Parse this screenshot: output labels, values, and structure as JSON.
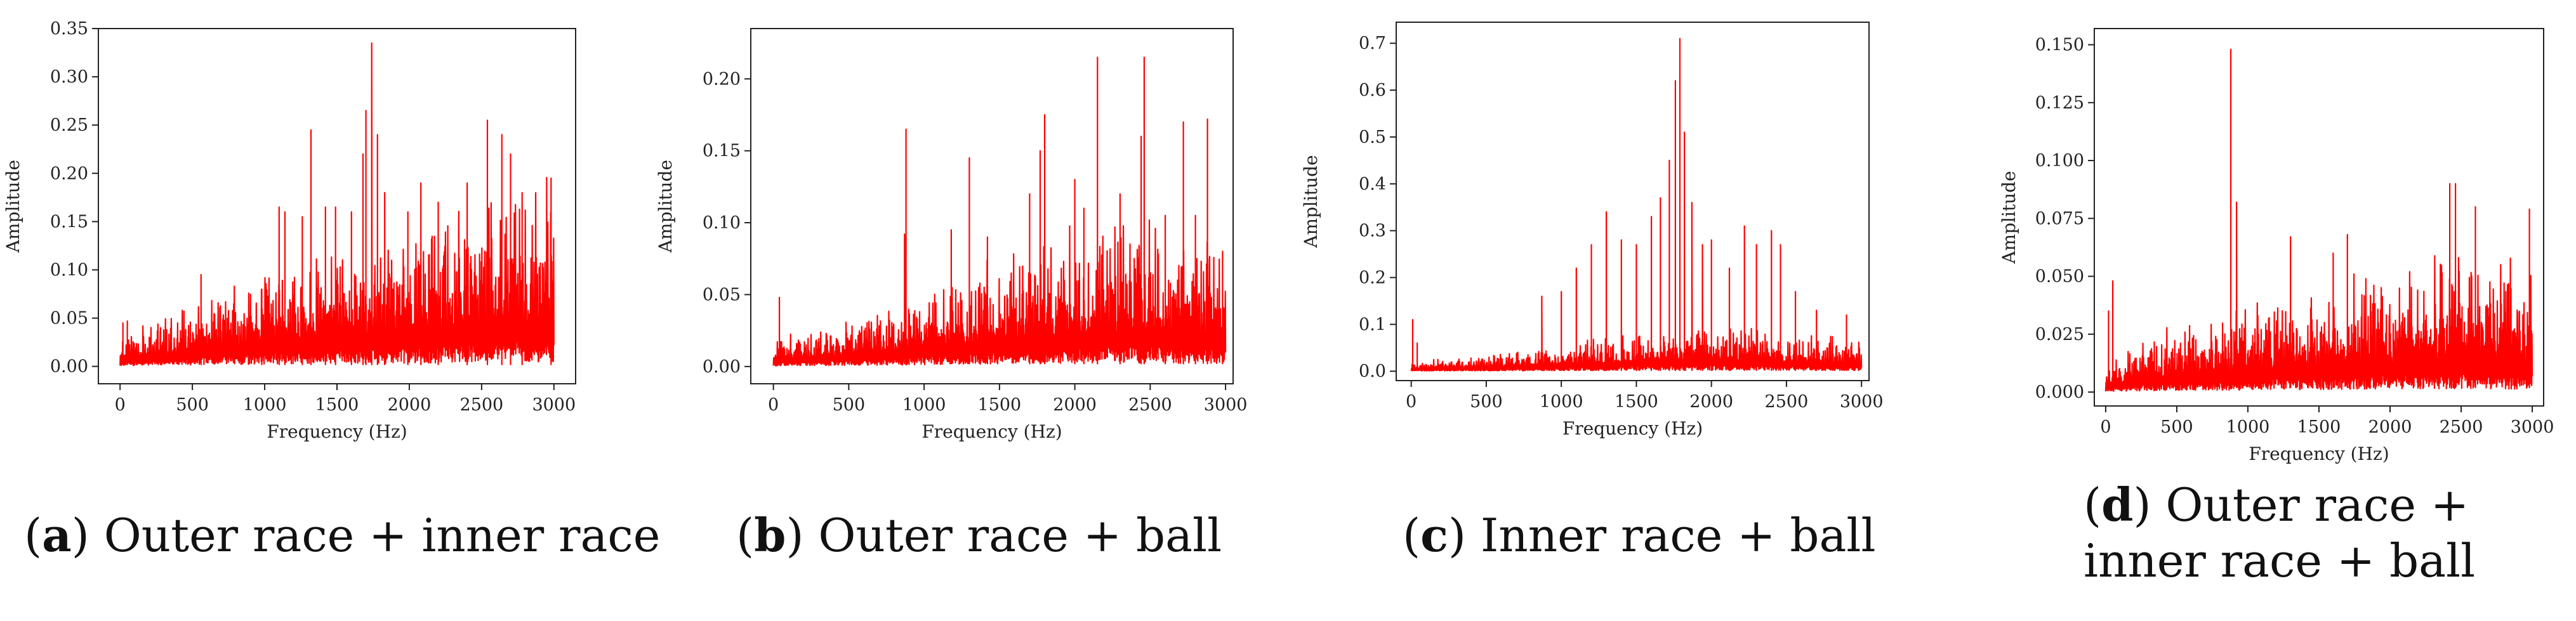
{
  "chart_data": [
    {
      "type": "line",
      "panel": "a",
      "title": "",
      "xlabel": "Frequency (Hz)",
      "ylabel": "Amplitude",
      "xlim": [
        -150,
        3150
      ],
      "ylim": [
        -0.018,
        0.35
      ],
      "x_ticks": [
        0,
        500,
        1000,
        1500,
        2000,
        2500,
        3000
      ],
      "x_tick_labels": [
        "0",
        "500",
        "1000",
        "1500",
        "2000",
        "2500",
        "3000"
      ],
      "y_ticks": [
        0,
        0.05,
        0.1,
        0.15,
        0.2,
        0.25,
        0.3,
        0.35
      ],
      "y_tick_labels": [
        "0.00",
        "0.05",
        "0.10",
        "0.15",
        "0.20",
        "0.25",
        "0.30",
        "0.35"
      ],
      "color": "#ff0000",
      "noise_floor": [
        [
          0,
          0.015
        ],
        [
          500,
          0.03
        ],
        [
          1000,
          0.05
        ],
        [
          1500,
          0.06
        ],
        [
          2000,
          0.065
        ],
        [
          2500,
          0.085
        ],
        [
          3000,
          0.09
        ]
      ],
      "peaks": [
        [
          20,
          0.045
        ],
        [
          50,
          0.047
        ],
        [
          280,
          0.04
        ],
        [
          560,
          0.095
        ],
        [
          980,
          0.08
        ],
        [
          1100,
          0.165
        ],
        [
          1140,
          0.16
        ],
        [
          1260,
          0.155
        ],
        [
          1320,
          0.245
        ],
        [
          1420,
          0.165
        ],
        [
          1490,
          0.165
        ],
        [
          1600,
          0.16
        ],
        [
          1680,
          0.22
        ],
        [
          1700,
          0.265
        ],
        [
          1740,
          0.335
        ],
        [
          1780,
          0.24
        ],
        [
          1830,
          0.18
        ],
        [
          1990,
          0.16
        ],
        [
          2080,
          0.19
        ],
        [
          2200,
          0.17
        ],
        [
          2400,
          0.19
        ],
        [
          2540,
          0.255
        ],
        [
          2640,
          0.24
        ],
        [
          2700,
          0.22
        ],
        [
          2780,
          0.18
        ],
        [
          2980,
          0.195
        ]
      ]
    },
    {
      "type": "line",
      "panel": "b",
      "title": "",
      "xlabel": "Frequency (Hz)",
      "ylabel": "Amplitude",
      "xlim": [
        -150,
        3050
      ],
      "ylim": [
        -0.012,
        0.235
      ],
      "x_ticks": [
        0,
        500,
        1000,
        1500,
        2000,
        2500,
        3000
      ],
      "x_tick_labels": [
        "0",
        "500",
        "1000",
        "1500",
        "2000",
        "2500",
        "3000"
      ],
      "y_ticks": [
        0,
        0.05,
        0.1,
        0.15,
        0.2
      ],
      "y_tick_labels": [
        "0.00",
        "0.05",
        "0.10",
        "0.15",
        "0.20"
      ],
      "color": "#ff0000",
      "noise_floor": [
        [
          0,
          0.01
        ],
        [
          500,
          0.015
        ],
        [
          1000,
          0.025
        ],
        [
          1500,
          0.035
        ],
        [
          2000,
          0.045
        ],
        [
          2500,
          0.05
        ],
        [
          3000,
          0.04
        ]
      ],
      "peaks": [
        [
          40,
          0.048
        ],
        [
          870,
          0.092
        ],
        [
          880,
          0.165
        ],
        [
          1180,
          0.095
        ],
        [
          1300,
          0.145
        ],
        [
          1420,
          0.09
        ],
        [
          1700,
          0.12
        ],
        [
          1770,
          0.15
        ],
        [
          1800,
          0.175
        ],
        [
          2000,
          0.13
        ],
        [
          2060,
          0.11
        ],
        [
          2150,
          0.215
        ],
        [
          2300,
          0.12
        ],
        [
          2440,
          0.16
        ],
        [
          2460,
          0.215
        ],
        [
          2600,
          0.105
        ],
        [
          2720,
          0.17
        ],
        [
          2800,
          0.105
        ],
        [
          2880,
          0.172
        ],
        [
          2980,
          0.08
        ]
      ]
    },
    {
      "type": "line",
      "panel": "c",
      "title": "",
      "xlabel": "Frequency (Hz)",
      "ylabel": "Amplitude",
      "xlim": [
        -100,
        3050
      ],
      "ylim": [
        -0.02,
        0.745
      ],
      "x_ticks": [
        0,
        500,
        1000,
        1500,
        2000,
        2500,
        3000
      ],
      "x_tick_labels": [
        "0",
        "500",
        "1000",
        "1500",
        "2000",
        "2500",
        "3000"
      ],
      "y_ticks": [
        0,
        0.1,
        0.2,
        0.3,
        0.4,
        0.5,
        0.6,
        0.7
      ],
      "y_tick_labels": [
        "0.0",
        "0.1",
        "0.2",
        "0.3",
        "0.4",
        "0.5",
        "0.6",
        "0.7"
      ],
      "color": "#ff0000",
      "noise_floor": [
        [
          0,
          0.01
        ],
        [
          500,
          0.015
        ],
        [
          1000,
          0.025
        ],
        [
          1500,
          0.04
        ],
        [
          2000,
          0.045
        ],
        [
          2500,
          0.04
        ],
        [
          3000,
          0.03
        ]
      ],
      "peaks": [
        [
          10,
          0.11
        ],
        [
          40,
          0.06
        ],
        [
          870,
          0.16
        ],
        [
          1000,
          0.17
        ],
        [
          1100,
          0.22
        ],
        [
          1200,
          0.27
        ],
        [
          1300,
          0.34
        ],
        [
          1400,
          0.28
        ],
        [
          1500,
          0.27
        ],
        [
          1600,
          0.33
        ],
        [
          1660,
          0.37
        ],
        [
          1720,
          0.45
        ],
        [
          1760,
          0.62
        ],
        [
          1790,
          0.71
        ],
        [
          1820,
          0.51
        ],
        [
          1870,
          0.36
        ],
        [
          1940,
          0.27
        ],
        [
          2000,
          0.28
        ],
        [
          2120,
          0.22
        ],
        [
          2220,
          0.31
        ],
        [
          2300,
          0.27
        ],
        [
          2400,
          0.3
        ],
        [
          2460,
          0.27
        ],
        [
          2560,
          0.17
        ],
        [
          2700,
          0.13
        ],
        [
          2900,
          0.12
        ]
      ]
    },
    {
      "type": "line",
      "panel": "d",
      "title": "",
      "xlabel": "Frequency (Hz)",
      "ylabel": "Amplitude",
      "xlim": [
        -80,
        3080
      ],
      "ylim": [
        -0.006,
        0.157
      ],
      "x_ticks": [
        0,
        500,
        1000,
        1500,
        2000,
        2500,
        3000
      ],
      "x_tick_labels": [
        "0",
        "500",
        "1000",
        "1500",
        "2000",
        "2500",
        "3000"
      ],
      "y_ticks": [
        0,
        0.025,
        0.05,
        0.075,
        0.1,
        0.125,
        0.15
      ],
      "y_tick_labels": [
        "0.000",
        "0.025",
        "0.050",
        "0.075",
        "0.100",
        "0.125",
        "0.150"
      ],
      "color": "#ff0000",
      "noise_floor": [
        [
          0,
          0.005
        ],
        [
          300,
          0.012
        ],
        [
          600,
          0.015
        ],
        [
          1000,
          0.018
        ],
        [
          1500,
          0.022
        ],
        [
          2000,
          0.025
        ],
        [
          2500,
          0.03
        ],
        [
          3000,
          0.025
        ]
      ],
      "peaks": [
        [
          20,
          0.035
        ],
        [
          50,
          0.048
        ],
        [
          880,
          0.148
        ],
        [
          920,
          0.082
        ],
        [
          1300,
          0.067
        ],
        [
          1600,
          0.06
        ],
        [
          1700,
          0.068
        ],
        [
          2420,
          0.09
        ],
        [
          2460,
          0.09
        ],
        [
          2600,
          0.08
        ],
        [
          2980,
          0.079
        ]
      ]
    }
  ],
  "captions": [
    {
      "letter": "a",
      "open": "(",
      "close": ")",
      "text": " Outer race + inner race"
    },
    {
      "letter": "b",
      "open": "(",
      "close": ")",
      "text": " Outer race + ball"
    },
    {
      "letter": "c",
      "open": "(",
      "close": ")",
      "text": " Inner race + ball"
    },
    {
      "letter": "d",
      "open": "(",
      "close": ")",
      "text": " Outer race + inner race + ball"
    }
  ]
}
